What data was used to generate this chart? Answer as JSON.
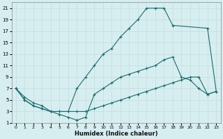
{
  "xlabel": "Humidex (Indice chaleur)",
  "bg_color": "#d6eef0",
  "grid_color": "#c8dfe0",
  "line_color": "#1a6b6b",
  "xlim": [
    -0.5,
    23.5
  ],
  "ylim": [
    1,
    22
  ],
  "xticks": [
    0,
    1,
    2,
    3,
    4,
    5,
    6,
    7,
    8,
    9,
    10,
    11,
    12,
    13,
    14,
    15,
    16,
    17,
    18,
    19,
    20,
    21,
    22,
    23
  ],
  "yticks": [
    1,
    3,
    5,
    7,
    9,
    11,
    13,
    15,
    17,
    19,
    21
  ],
  "curve1_x": [
    0,
    1,
    2,
    3,
    4,
    5,
    6,
    7,
    8,
    9,
    10,
    11,
    12,
    13,
    14,
    15,
    16,
    17,
    18,
    22,
    23
  ],
  "curve1_y": [
    7,
    5,
    4,
    3.5,
    3,
    3,
    3,
    7,
    9,
    11,
    13,
    14,
    16,
    17.5,
    19,
    21,
    21,
    21,
    18,
    17.5,
    6.5
  ],
  "curve2_x": [
    0,
    1,
    2,
    3,
    4,
    5,
    6,
    7,
    8,
    9,
    10,
    11,
    12,
    13,
    14,
    15,
    16,
    17,
    18,
    19,
    20,
    21,
    22,
    23
  ],
  "curve2_y": [
    7,
    5.5,
    4.5,
    4,
    3,
    3,
    3,
    3,
    3,
    3.5,
    4,
    4.5,
    5,
    5.5,
    6,
    6.5,
    7,
    7.5,
    8,
    8.5,
    9,
    9,
    6,
    6.5
  ],
  "curve3_x": [
    0,
    1,
    2,
    3,
    4,
    5,
    6,
    7,
    8,
    9,
    10,
    11,
    12,
    13,
    14,
    15,
    16,
    17,
    18,
    19,
    20,
    21,
    22,
    23
  ],
  "curve3_y": [
    7,
    5,
    4,
    3.5,
    3,
    2.5,
    2,
    1.5,
    2,
    6,
    7,
    8,
    9,
    9.5,
    10,
    10.5,
    11,
    12,
    12.5,
    9,
    8.5,
    7,
    6,
    6.5
  ]
}
